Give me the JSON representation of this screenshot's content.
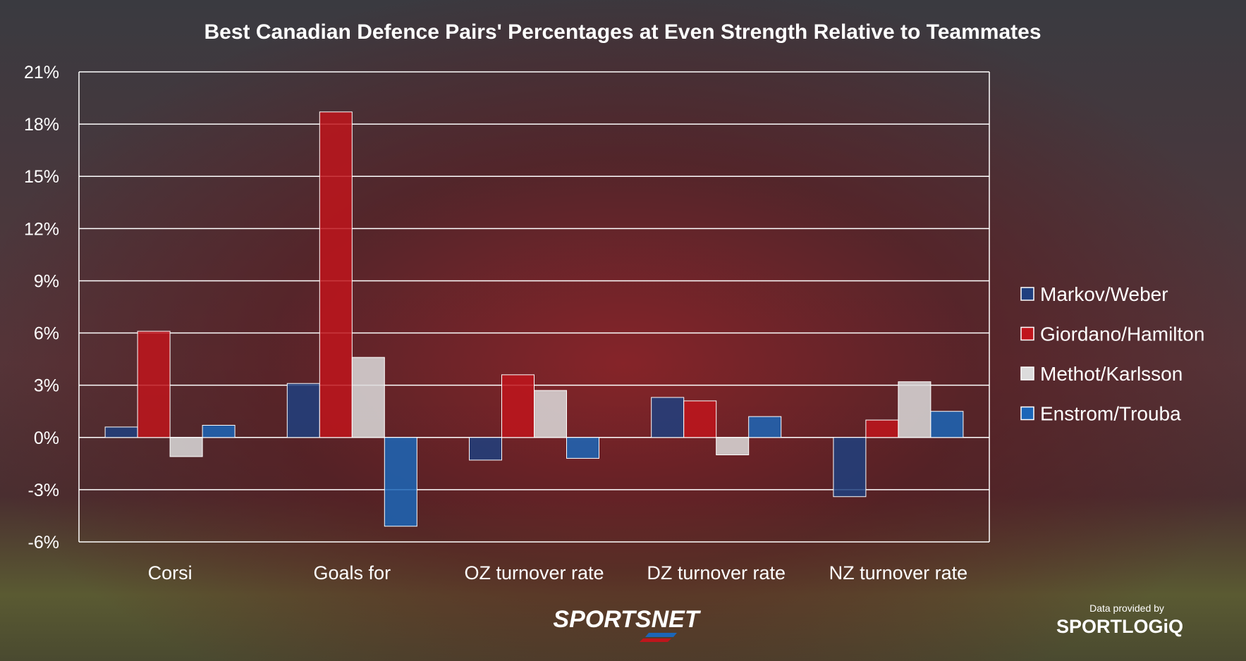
{
  "chart_data": {
    "type": "bar",
    "title": "Best Canadian Defence Pairs' Percentages at Even Strength Relative to Teammates",
    "categories": [
      "Corsi",
      "Goals for",
      "OZ turnover rate",
      "DZ turnover rate",
      "NZ turnover rate"
    ],
    "series": [
      {
        "name": "Markov/Weber",
        "color": "#1f3f7f",
        "values": [
          0.6,
          3.1,
          -1.3,
          2.3,
          -3.4
        ]
      },
      {
        "name": "Giordano/Hamilton",
        "color": "#c0151c",
        "values": [
          6.1,
          18.7,
          3.6,
          2.1,
          1.0
        ]
      },
      {
        "name": "Methot/Karlsson",
        "color": "#dcdcdc",
        "values": [
          -1.1,
          4.6,
          2.7,
          -1.0,
          3.2
        ]
      },
      {
        "name": "Enstrom/Trouba",
        "color": "#1b66b8",
        "values": [
          0.7,
          -5.1,
          -1.2,
          1.2,
          1.5
        ]
      }
    ],
    "ylim": [
      -6,
      21
    ],
    "yticks": [
      -6,
      -3,
      0,
      3,
      6,
      9,
      12,
      15,
      18,
      21
    ],
    "y_tick_suffix": "%",
    "grid": true,
    "legend_position": "right"
  },
  "branding": {
    "logo": "SPORTSNET",
    "credit_label": "Data provided by",
    "credit_brand": "SPORTLOGiQ"
  }
}
